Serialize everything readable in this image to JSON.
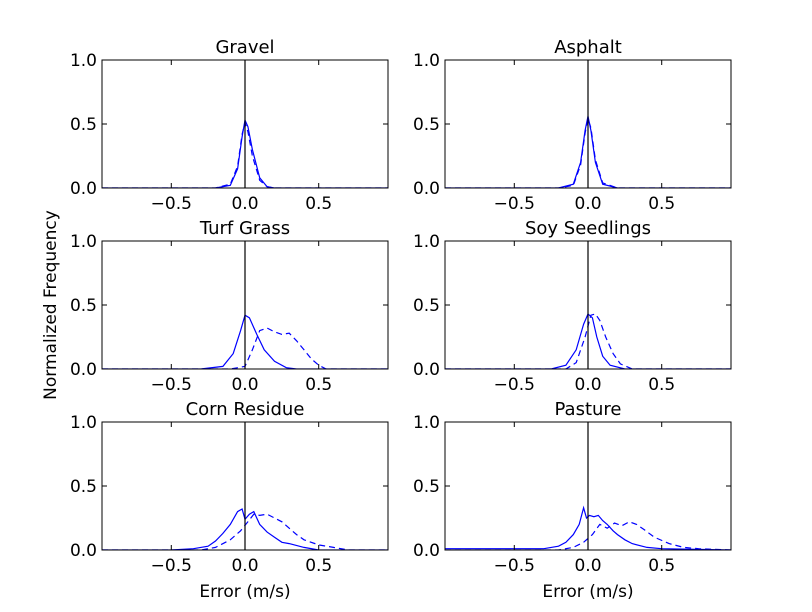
{
  "figure": {
    "ylabel": "Normalized Frequency",
    "xlabel": "Error (m/s)"
  },
  "chart_data": [
    {
      "type": "line",
      "title": "Gravel",
      "xlim": [
        -0.97,
        0.97
      ],
      "ylim": [
        0,
        1
      ],
      "xticks": [
        -0.5,
        0.0,
        0.5
      ],
      "yticks": [
        0.0,
        0.5,
        1.0
      ],
      "series": [
        {
          "style": "solid",
          "x": [
            -0.97,
            -0.2,
            -0.1,
            -0.05,
            -0.02,
            0.0,
            0.02,
            0.05,
            0.1,
            0.15,
            0.2,
            0.97
          ],
          "y": [
            0,
            0,
            0.02,
            0.15,
            0.4,
            0.53,
            0.48,
            0.3,
            0.08,
            0.01,
            0,
            0
          ]
        },
        {
          "style": "dashed",
          "x": [
            -0.97,
            -0.2,
            -0.1,
            -0.05,
            -0.02,
            0.0,
            0.02,
            0.05,
            0.1,
            0.15,
            0.2,
            0.97
          ],
          "y": [
            0,
            0,
            0.03,
            0.17,
            0.42,
            0.51,
            0.44,
            0.25,
            0.06,
            0.01,
            0,
            0
          ]
        }
      ]
    },
    {
      "type": "line",
      "title": "Asphalt",
      "xlim": [
        -0.97,
        0.97
      ],
      "ylim": [
        0,
        1
      ],
      "xticks": [
        -0.5,
        0.0,
        0.5
      ],
      "yticks": [
        0.0,
        0.5,
        1.0
      ],
      "series": [
        {
          "style": "solid",
          "x": [
            -0.97,
            -0.2,
            -0.1,
            -0.05,
            -0.02,
            0.0,
            0.02,
            0.05,
            0.1,
            0.2,
            0.97
          ],
          "y": [
            0,
            0,
            0.03,
            0.2,
            0.45,
            0.56,
            0.45,
            0.2,
            0.03,
            0,
            0
          ]
        },
        {
          "style": "dashed",
          "x": [
            -0.97,
            -0.2,
            -0.1,
            -0.05,
            -0.02,
            0.0,
            0.02,
            0.05,
            0.1,
            0.2,
            0.97
          ],
          "y": [
            0,
            0,
            0.02,
            0.18,
            0.43,
            0.54,
            0.47,
            0.22,
            0.04,
            0,
            0
          ]
        }
      ]
    },
    {
      "type": "line",
      "title": "Turf Grass",
      "xlim": [
        -0.97,
        0.97
      ],
      "ylim": [
        0,
        1
      ],
      "xticks": [
        -0.5,
        0.0,
        0.5
      ],
      "yticks": [
        0.0,
        0.5,
        1.0
      ],
      "series": [
        {
          "style": "solid",
          "x": [
            -0.97,
            -0.3,
            -0.15,
            -0.08,
            -0.03,
            0.0,
            0.03,
            0.08,
            0.13,
            0.2,
            0.28,
            0.35,
            0.97
          ],
          "y": [
            0,
            0,
            0.02,
            0.12,
            0.3,
            0.42,
            0.4,
            0.27,
            0.15,
            0.06,
            0.01,
            0,
            0
          ]
        },
        {
          "style": "dashed",
          "x": [
            -0.97,
            -0.1,
            0.0,
            0.05,
            0.1,
            0.15,
            0.2,
            0.25,
            0.3,
            0.35,
            0.4,
            0.45,
            0.5,
            0.55,
            0.97
          ],
          "y": [
            0,
            0,
            0.02,
            0.15,
            0.3,
            0.32,
            0.29,
            0.27,
            0.28,
            0.22,
            0.15,
            0.08,
            0.03,
            0,
            0
          ]
        }
      ]
    },
    {
      "type": "line",
      "title": "Soy Seedlings",
      "xlim": [
        -0.97,
        0.97
      ],
      "ylim": [
        0,
        1
      ],
      "xticks": [
        -0.5,
        0.0,
        0.5
      ],
      "yticks": [
        0.0,
        0.5,
        1.0
      ],
      "series": [
        {
          "style": "solid",
          "x": [
            -0.97,
            -0.25,
            -0.15,
            -0.08,
            -0.03,
            0.0,
            0.03,
            0.06,
            0.1,
            0.15,
            0.25,
            0.97
          ],
          "y": [
            0,
            0,
            0.03,
            0.15,
            0.35,
            0.43,
            0.4,
            0.25,
            0.1,
            0.03,
            0,
            0
          ]
        },
        {
          "style": "dashed",
          "x": [
            -0.97,
            -0.15,
            -0.08,
            -0.02,
            0.02,
            0.05,
            0.08,
            0.12,
            0.17,
            0.22,
            0.3,
            0.97
          ],
          "y": [
            0,
            0,
            0.05,
            0.25,
            0.42,
            0.43,
            0.38,
            0.25,
            0.12,
            0.04,
            0,
            0
          ]
        }
      ]
    },
    {
      "type": "line",
      "title": "Corn Residue",
      "xlim": [
        -0.97,
        0.97
      ],
      "ylim": [
        0,
        1
      ],
      "xticks": [
        -0.5,
        0.0,
        0.5
      ],
      "yticks": [
        0.0,
        0.5,
        1.0
      ],
      "series": [
        {
          "style": "solid",
          "x": [
            -0.97,
            -0.5,
            -0.35,
            -0.25,
            -0.2,
            -0.15,
            -0.1,
            -0.05,
            -0.02,
            0.0,
            0.03,
            0.06,
            0.1,
            0.15,
            0.2,
            0.25,
            0.3,
            0.4,
            0.5,
            0.97
          ],
          "y": [
            0,
            0,
            0.01,
            0.03,
            0.07,
            0.13,
            0.2,
            0.3,
            0.32,
            0.24,
            0.28,
            0.3,
            0.2,
            0.14,
            0.1,
            0.06,
            0.05,
            0.02,
            0,
            0
          ]
        },
        {
          "style": "dashed",
          "x": [
            -0.97,
            -0.3,
            -0.2,
            -0.1,
            -0.03,
            0.02,
            0.06,
            0.1,
            0.15,
            0.2,
            0.25,
            0.3,
            0.35,
            0.4,
            0.5,
            0.6,
            0.7,
            0.97
          ],
          "y": [
            0,
            0,
            0.02,
            0.08,
            0.15,
            0.22,
            0.28,
            0.27,
            0.28,
            0.25,
            0.22,
            0.17,
            0.12,
            0.08,
            0.04,
            0.02,
            0,
            0
          ]
        }
      ]
    },
    {
      "type": "line",
      "title": "Pasture",
      "xlim": [
        -0.97,
        0.97
      ],
      "ylim": [
        0,
        1
      ],
      "xticks": [
        -0.5,
        0.0,
        0.5
      ],
      "yticks": [
        0.0,
        0.5,
        1.0
      ],
      "series": [
        {
          "style": "solid",
          "x": [
            -0.97,
            -0.5,
            -0.3,
            -0.2,
            -0.15,
            -0.1,
            -0.06,
            -0.03,
            -0.01,
            0.01,
            0.04,
            0.07,
            0.1,
            0.13,
            0.17,
            0.2,
            0.25,
            0.3,
            0.4,
            0.5,
            0.97
          ],
          "y": [
            0.01,
            0.01,
            0.01,
            0.03,
            0.06,
            0.12,
            0.2,
            0.33,
            0.25,
            0.27,
            0.26,
            0.27,
            0.23,
            0.2,
            0.15,
            0.12,
            0.08,
            0.05,
            0.02,
            0.01,
            0
          ]
        },
        {
          "style": "dashed",
          "x": [
            -0.97,
            -0.2,
            -0.1,
            -0.03,
            0.03,
            0.08,
            0.13,
            0.18,
            0.23,
            0.28,
            0.33,
            0.38,
            0.45,
            0.55,
            0.65,
            0.75,
            0.97
          ],
          "y": [
            0,
            0,
            0.02,
            0.06,
            0.12,
            0.2,
            0.17,
            0.21,
            0.19,
            0.22,
            0.2,
            0.16,
            0.1,
            0.05,
            0.02,
            0.01,
            0
          ]
        }
      ]
    }
  ]
}
